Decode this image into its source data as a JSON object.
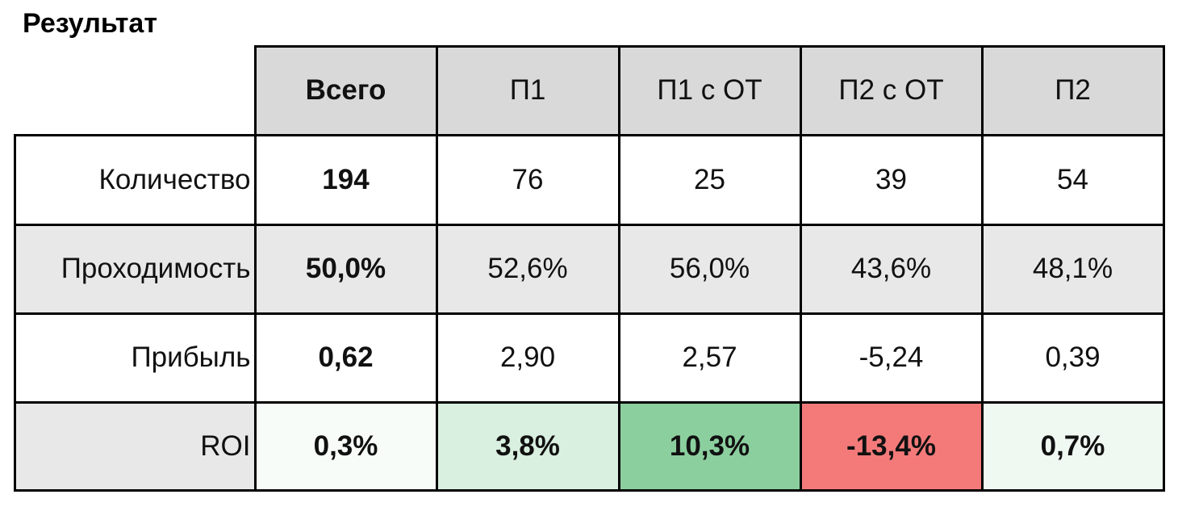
{
  "title": "Результат",
  "table": {
    "header": [
      "Всего",
      "П1",
      "П1 с ОТ",
      "П2 с ОТ",
      "П2"
    ],
    "rows": [
      [
        "Количество",
        "194",
        "76",
        "25",
        "39",
        "54"
      ],
      [
        "Проходимость",
        "50,0%",
        "52,6%",
        "56,0%",
        "43,6%",
        "48,1%"
      ],
      [
        "Прибыль",
        "0,62",
        "2,90",
        "2,57",
        "-5,24",
        "0,39"
      ],
      [
        "ROI",
        "0,3%",
        "3,8%",
        "10,3%",
        "-13,4%",
        "0,7%"
      ]
    ]
  }
}
